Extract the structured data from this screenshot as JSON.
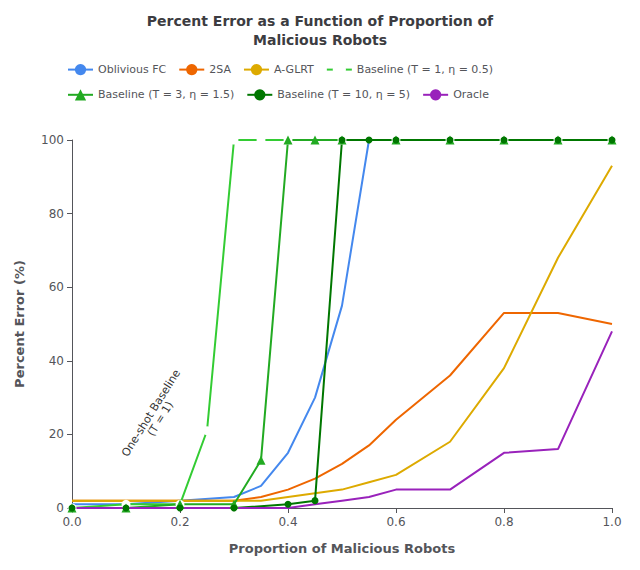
{
  "chart_data": {
    "type": "line",
    "title": "Percent Error as a Function of Proportion of\nMalicious Robots",
    "xlabel": "Proportion of Malicious Robots",
    "ylabel": "Percent Error (%)",
    "xlim": [
      0,
      1.0
    ],
    "ylim": [
      0,
      100
    ],
    "xticks": [
      {
        "value": 0,
        "label": "0.0"
      },
      0.2,
      0.4,
      0.6,
      0.8,
      {
        "value": 1.0,
        "label": "1.0"
      }
    ],
    "yticks": [
      0,
      20,
      40,
      60,
      80,
      100
    ],
    "grid": false,
    "legend": "upper left",
    "annotations": [
      {
        "text": "One-shot Baseline\n(T = 1)",
        "x": 0.155,
        "y": 25
      }
    ],
    "series": [
      {
        "name": "Oblivious FC",
        "color": "#4488ee",
        "x": [
          0.0,
          0.1,
          0.2,
          0.3,
          0.35,
          0.4,
          0.45,
          0.5,
          0.55,
          0.6,
          0.7,
          0.8,
          0.9,
          1.0
        ],
        "values": [
          1,
          1,
          2,
          3,
          6,
          15,
          30,
          55,
          100,
          100,
          100,
          100,
          100,
          100
        ]
      },
      {
        "name": "2SA",
        "color": "#ee6600",
        "x": [
          0.0,
          0.1,
          0.2,
          0.3,
          0.35,
          0.4,
          0.45,
          0.5,
          0.55,
          0.6,
          0.7,
          0.8,
          0.9,
          1.0
        ],
        "values": [
          2,
          2,
          2,
          2,
          3,
          5,
          8,
          12,
          17,
          24,
          36,
          53,
          53,
          50
        ]
      },
      {
        "name": "A-GLRT",
        "color": "#ddaa00",
        "x": [
          0.0,
          0.1,
          0.2,
          0.3,
          0.35,
          0.4,
          0.45,
          0.5,
          0.55,
          0.6,
          0.7,
          0.8,
          0.9,
          1.0
        ],
        "values": [
          2,
          2,
          2,
          2,
          2,
          3,
          4,
          5,
          7,
          9,
          18,
          38,
          68,
          93
        ]
      },
      {
        "name": "Baseline (T = 1, η = 0.5)",
        "color": "#33cc33",
        "marker": "open_circle",
        "x": [
          0.0,
          0.1,
          0.2,
          0.25,
          0.3,
          0.35,
          0.4,
          0.5,
          0.6,
          0.7,
          0.8,
          0.9,
          1.0
        ],
        "values": [
          0,
          1,
          1,
          21,
          100,
          100,
          100,
          100,
          100,
          100,
          100,
          100,
          100
        ]
      },
      {
        "name": "Baseline (T = 3, η = 1.5)",
        "color": "#22aa22",
        "marker": "triangle",
        "x": [
          0.0,
          0.1,
          0.2,
          0.3,
          0.35,
          0.4,
          0.45,
          0.5,
          0.6,
          0.7,
          0.8,
          0.9,
          1.0
        ],
        "values": [
          0,
          0,
          1,
          1,
          13,
          100,
          100,
          100,
          100,
          100,
          100,
          100,
          100
        ]
      },
      {
        "name": "Baseline (T = 10, η = 5)",
        "color": "#007700",
        "marker": "circle",
        "x": [
          0.0,
          0.1,
          0.2,
          0.3,
          0.4,
          0.45,
          0.5,
          0.55,
          0.6,
          0.7,
          0.8,
          0.9,
          1.0
        ],
        "values": [
          0,
          0,
          0,
          0,
          1,
          2,
          100,
          100,
          100,
          100,
          100,
          100,
          100
        ]
      },
      {
        "name": "Oracle",
        "color": "#9922bb",
        "x": [
          0.0,
          0.1,
          0.2,
          0.3,
          0.35,
          0.4,
          0.45,
          0.5,
          0.55,
          0.6,
          0.7,
          0.8,
          0.9,
          1.0
        ],
        "values": [
          0,
          0,
          0,
          0,
          0,
          0,
          1,
          2,
          3,
          5,
          5,
          15,
          16,
          48
        ]
      }
    ]
  }
}
